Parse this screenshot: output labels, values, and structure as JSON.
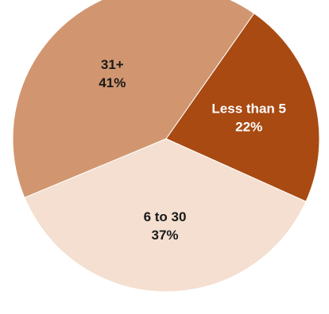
{
  "chart_data": {
    "type": "pie",
    "title": "",
    "start_angle_deg": 35,
    "direction": "clockwise",
    "slices": [
      {
        "label": "Less than 5",
        "value_label": "22%",
        "value": 22,
        "color": "#a84a12",
        "text_color": "#ffffff"
      },
      {
        "label": "6 to 30",
        "value_label": "37%",
        "value": 37,
        "color": "#f4dfd0",
        "text_color": "#1a1a1a"
      },
      {
        "label": "31+",
        "value_label": "41%",
        "value": 41,
        "color": "#d19670",
        "text_color": "#1a1a1a"
      }
    ]
  }
}
